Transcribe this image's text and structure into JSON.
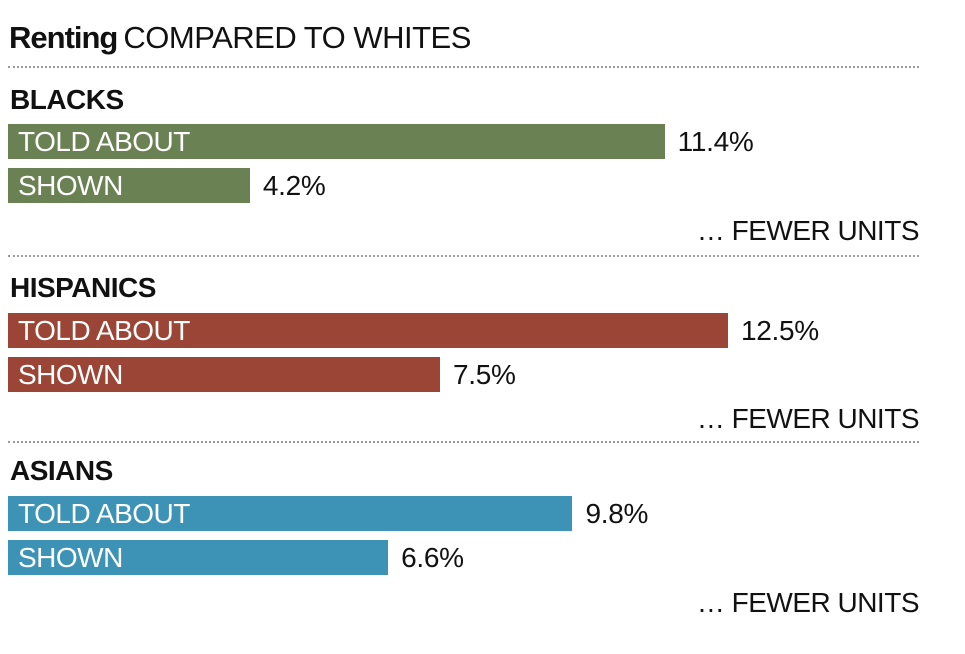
{
  "chart_data": {
    "type": "bar",
    "title_bold": "Renting",
    "title_rest": "COMPARED TO WHITES",
    "note": "… FEWER UNITS",
    "max_value": 12.5,
    "groups": [
      {
        "name": "BLACKS",
        "color": "#6a8153",
        "bars": [
          {
            "label": "TOLD ABOUT",
            "value": 11.4,
            "display": "11.4%"
          },
          {
            "label": "SHOWN",
            "value": 4.2,
            "display": "4.2%"
          }
        ]
      },
      {
        "name": "HISPANICS",
        "color": "#9a4535",
        "bars": [
          {
            "label": "TOLD ABOUT",
            "value": 12.5,
            "display": "12.5%"
          },
          {
            "label": "SHOWN",
            "value": 7.5,
            "display": "7.5%"
          }
        ]
      },
      {
        "name": "ASIANS",
        "color": "#3d93b5",
        "bars": [
          {
            "label": "TOLD ABOUT",
            "value": 9.8,
            "display": "9.8%"
          },
          {
            "label": "SHOWN",
            "value": 6.6,
            "display": "6.6%"
          }
        ]
      }
    ]
  }
}
